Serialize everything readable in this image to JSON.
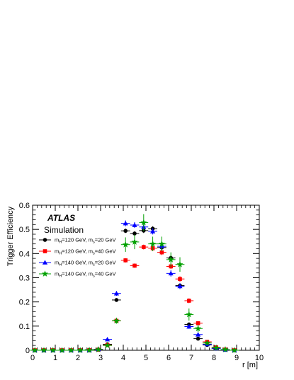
{
  "chart_data": {
    "type": "scatter",
    "xlabel": "r [m]",
    "ylabel": "Trigger Efficiency",
    "xlim": [
      0,
      10
    ],
    "ylim": [
      0,
      0.6
    ],
    "x_ticks": [
      "0",
      "1",
      "2",
      "3",
      "4",
      "5",
      "6",
      "7",
      "8",
      "9",
      "10"
    ],
    "y_ticks": [
      "0",
      "0.1",
      "0.2",
      "0.3",
      "0.4",
      "0.5",
      "0.6"
    ],
    "grid": false,
    "legend_position": "top-left",
    "annotations": {
      "atlas": "ATLAS",
      "simulation": "Simulation"
    },
    "series": [
      {
        "name": "m_H=120 GeV, m_s=20 GeV",
        "legend": {
          "main": "m",
          "sub1": "H",
          "mid": "=120 GeV, m",
          "sub2": "s",
          "tail": "=20 GeV"
        },
        "color": "#000000",
        "marker": "circle",
        "points": [
          [
            0.1,
            0
          ],
          [
            0.5,
            0
          ],
          [
            0.9,
            0
          ],
          [
            1.3,
            0
          ],
          [
            1.7,
            0
          ],
          [
            2.1,
            0
          ],
          [
            2.5,
            0.002
          ],
          [
            2.9,
            0.004
          ],
          [
            3.3,
            0.025
          ],
          [
            3.7,
            0.208
          ],
          [
            4.1,
            0.494
          ],
          [
            4.5,
            0.483
          ],
          [
            4.9,
            0.495
          ],
          [
            5.3,
            0.503
          ],
          [
            5.7,
            0.425
          ],
          [
            6.1,
            0.382
          ],
          [
            6.5,
            0.268
          ],
          [
            6.9,
            0.107
          ],
          [
            7.3,
            0.048
          ],
          [
            7.7,
            0.022
          ],
          [
            8.1,
            0.008
          ],
          [
            8.5,
            0.002
          ],
          [
            8.9,
            0
          ]
        ],
        "yerr": [
          0,
          0,
          0,
          0,
          0,
          0,
          0.002,
          0.003,
          0.004,
          0.006,
          0.009,
          0.009,
          0.01,
          0.01,
          0.01,
          0.01,
          0.009,
          0.007,
          0.005,
          0.004,
          0.003,
          0.002,
          0
        ]
      },
      {
        "name": "m_H=120 GeV, m_s=40 GeV",
        "legend": {
          "main": "m",
          "sub1": "H",
          "mid": "=120 GeV, m",
          "sub2": "s",
          "tail": "=40 GeV"
        },
        "color": "#ff0000",
        "marker": "square",
        "points": [
          [
            0.1,
            0
          ],
          [
            0.5,
            0
          ],
          [
            0.9,
            0
          ],
          [
            1.3,
            0
          ],
          [
            1.7,
            0
          ],
          [
            2.1,
            0
          ],
          [
            2.5,
            0
          ],
          [
            2.9,
            0.002
          ],
          [
            3.3,
            0.022
          ],
          [
            3.7,
            0.122
          ],
          [
            4.1,
            0.372
          ],
          [
            4.5,
            0.35
          ],
          [
            4.9,
            0.427
          ],
          [
            5.3,
            0.422
          ],
          [
            5.7,
            0.405
          ],
          [
            6.1,
            0.347
          ],
          [
            6.5,
            0.295
          ],
          [
            6.9,
            0.205
          ],
          [
            7.3,
            0.112
          ],
          [
            7.7,
            0.035
          ],
          [
            8.1,
            0.012
          ],
          [
            8.5,
            0.003
          ],
          [
            8.9,
            0
          ]
        ],
        "yerr": [
          0,
          0,
          0,
          0,
          0,
          0,
          0,
          0.002,
          0.004,
          0.007,
          0.009,
          0.009,
          0.01,
          0.01,
          0.011,
          0.011,
          0.011,
          0.01,
          0.008,
          0.005,
          0.003,
          0.002,
          0
        ]
      },
      {
        "name": "m_H=140 GeV, m_s=20 GeV",
        "legend": {
          "main": "m",
          "sub1": "H",
          "mid": "=140 GeV, m",
          "sub2": "s",
          "tail": "=20 GeV"
        },
        "color": "#0000ff",
        "marker": "triangle",
        "points": [
          [
            0.1,
            0
          ],
          [
            0.5,
            0
          ],
          [
            0.9,
            0
          ],
          [
            1.3,
            0
          ],
          [
            1.7,
            0
          ],
          [
            2.1,
            0
          ],
          [
            2.5,
            0
          ],
          [
            2.9,
            0.004
          ],
          [
            3.3,
            0.045
          ],
          [
            3.7,
            0.235
          ],
          [
            4.1,
            0.525
          ],
          [
            4.5,
            0.518
          ],
          [
            4.9,
            0.51
          ],
          [
            5.3,
            0.492
          ],
          [
            5.7,
            0.43
          ],
          [
            6.1,
            0.318
          ],
          [
            6.5,
            0.265
          ],
          [
            6.9,
            0.098
          ],
          [
            7.3,
            0.065
          ],
          [
            7.7,
            0.025
          ],
          [
            8.1,
            0.008
          ],
          [
            8.5,
            0.002
          ],
          [
            8.9,
            0
          ]
        ],
        "yerr": [
          0,
          0,
          0,
          0,
          0,
          0,
          0,
          0.003,
          0.006,
          0.01,
          0.012,
          0.012,
          0.013,
          0.013,
          0.013,
          0.013,
          0.012,
          0.009,
          0.008,
          0.005,
          0.003,
          0.002,
          0
        ]
      },
      {
        "name": "m_H=140 GeV, m_s=40 GeV",
        "legend": {
          "main": "m",
          "sub1": "H",
          "mid": "=140 GeV, m",
          "sub2": "s",
          "tail": "=40 GeV"
        },
        "color": "#00a000",
        "marker": "star",
        "points": [
          [
            0.1,
            0
          ],
          [
            0.5,
            0
          ],
          [
            0.9,
            0
          ],
          [
            1.3,
            0
          ],
          [
            1.7,
            0
          ],
          [
            2.1,
            0
          ],
          [
            2.5,
            0
          ],
          [
            2.9,
            0.003
          ],
          [
            3.3,
            0.02
          ],
          [
            3.7,
            0.122
          ],
          [
            4.1,
            0.437
          ],
          [
            4.5,
            0.448
          ],
          [
            4.9,
            0.528
          ],
          [
            5.3,
            0.44
          ],
          [
            5.7,
            0.44
          ],
          [
            6.1,
            0.375
          ],
          [
            6.5,
            0.355
          ],
          [
            6.9,
            0.148
          ],
          [
            7.3,
            0.09
          ],
          [
            7.7,
            0.03
          ],
          [
            8.1,
            0.01
          ],
          [
            8.5,
            0.003
          ],
          [
            8.9,
            0
          ]
        ],
        "yerr": [
          0,
          0,
          0,
          0,
          0,
          0,
          0,
          0.003,
          0.006,
          0.012,
          0.03,
          0.03,
          0.035,
          0.03,
          0.03,
          0.03,
          0.03,
          0.025,
          0.015,
          0.008,
          0.004,
          0.002,
          0
        ]
      }
    ]
  }
}
